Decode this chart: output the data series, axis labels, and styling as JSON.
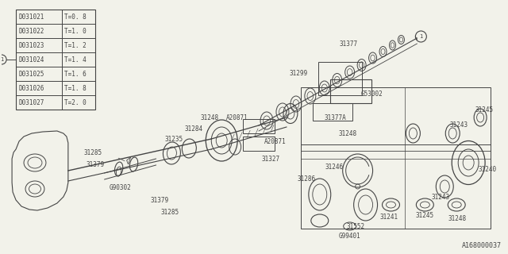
{
  "bg_color": "#f2f2ea",
  "line_color": "#444444",
  "title_bottom": "A168000037",
  "table_data": [
    [
      "D031021",
      "T=0. 8"
    ],
    [
      "D031022",
      "T=1. 0"
    ],
    [
      "D031023",
      "T=1. 2"
    ],
    [
      "D031024",
      "T=1. 4"
    ],
    [
      "D031025",
      "T=1. 6"
    ],
    [
      "D031026",
      "T=1. 8"
    ],
    [
      "D031027",
      "T=2. 0"
    ]
  ],
  "font_size_label": 5.5,
  "font_size_table": 5.5,
  "font_size_bottom": 6.0
}
